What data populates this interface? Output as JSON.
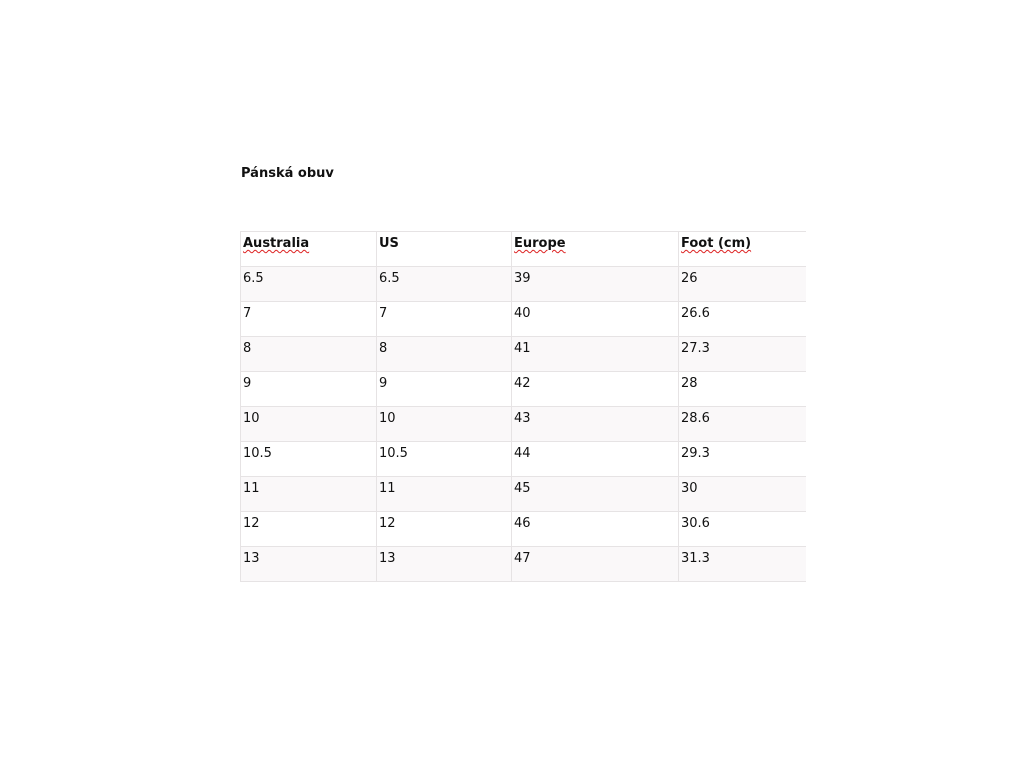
{
  "title": "Pánská obuv",
  "table": {
    "headers": [
      "Australia",
      "US",
      "Europe",
      "Foot (cm)"
    ],
    "rows": [
      [
        "6.5",
        "6.5",
        "39",
        "26"
      ],
      [
        "7",
        "7",
        "40",
        "26.6"
      ],
      [
        "8",
        "8",
        "41",
        "27.3"
      ],
      [
        "9",
        "9",
        "42",
        "28"
      ],
      [
        "10",
        "10",
        "43",
        "28.6"
      ],
      [
        "10.5",
        "10.5",
        "44",
        "29.3"
      ],
      [
        "11",
        "11",
        "45",
        "30"
      ],
      [
        "12",
        "12",
        "46",
        "30.6"
      ],
      [
        "13",
        "13",
        "47",
        "31.3"
      ]
    ]
  }
}
